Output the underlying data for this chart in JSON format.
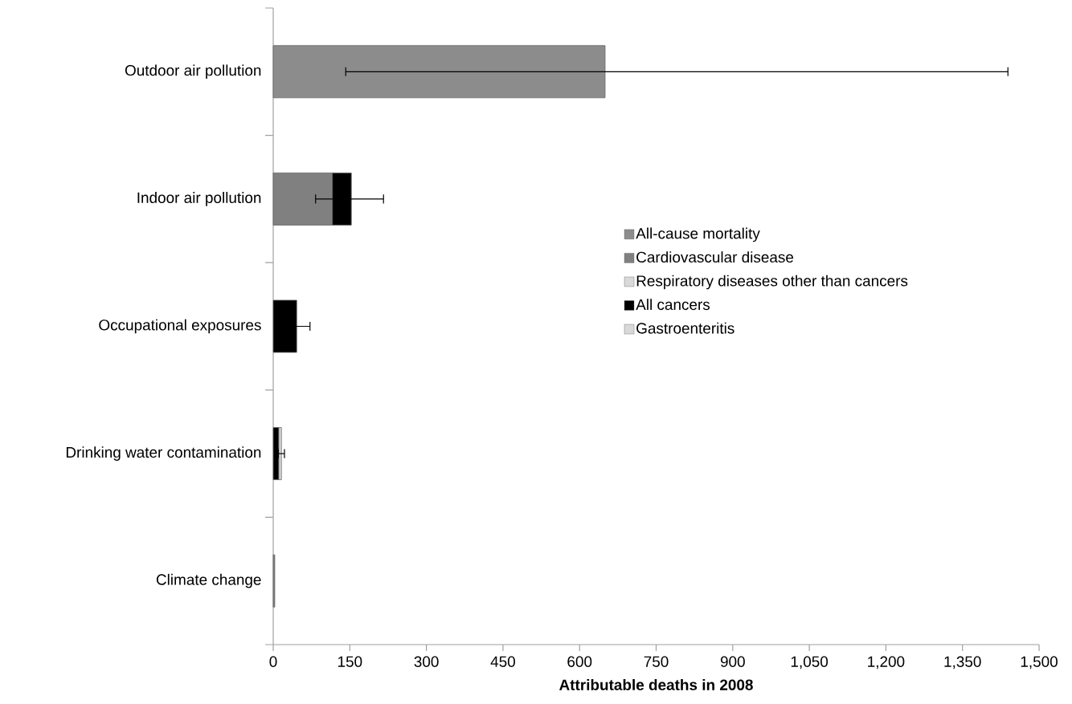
{
  "chart_data": {
    "type": "bar",
    "orientation": "horizontal",
    "stacked": true,
    "xlabel": "Attributable deaths in 2008",
    "categories": [
      "Outdoor air pollution",
      "Indoor air pollution",
      "Occupational exposures",
      "Drinking water contamination",
      "Climate change"
    ],
    "series": [
      {
        "name": "All-cause mortality",
        "color": "#8c8c8c",
        "values": [
          650,
          null,
          null,
          null,
          null
        ],
        "errors": [
          [
            142,
            1439
          ],
          null,
          null,
          null,
          null
        ]
      },
      {
        "name": "Cardiovascular disease",
        "color": "#808080",
        "values": [
          null,
          116,
          null,
          null,
          3
        ]
      },
      {
        "name": "Respiratory diseases other than cancers",
        "color": "#d9d9d9",
        "values": [
          null,
          null,
          null,
          null,
          null
        ]
      },
      {
        "name": "All cancers",
        "color": "#000000",
        "values": [
          null,
          37,
          46,
          11,
          null
        ],
        "errors": [
          null,
          [
            83,
            216
          ],
          26,
          null,
          null
        ]
      },
      {
        "name": "Gastroenteritis",
        "color": "#d9d9d9",
        "values": [
          null,
          null,
          null,
          5,
          null
        ],
        "errors": [
          null,
          null,
          null,
          6,
          null
        ]
      }
    ],
    "xlim": [
      0,
      1500
    ],
    "xticks": [
      0,
      150,
      300,
      450,
      600,
      750,
      900,
      {
        "value": 1050,
        "label": "1,050"
      },
      {
        "value": 1200,
        "label": "1,200"
      },
      {
        "value": 1350,
        "label": "1,350"
      },
      {
        "value": 1500,
        "label": "1,500"
      }
    ],
    "grid": false,
    "legend": "right"
  }
}
